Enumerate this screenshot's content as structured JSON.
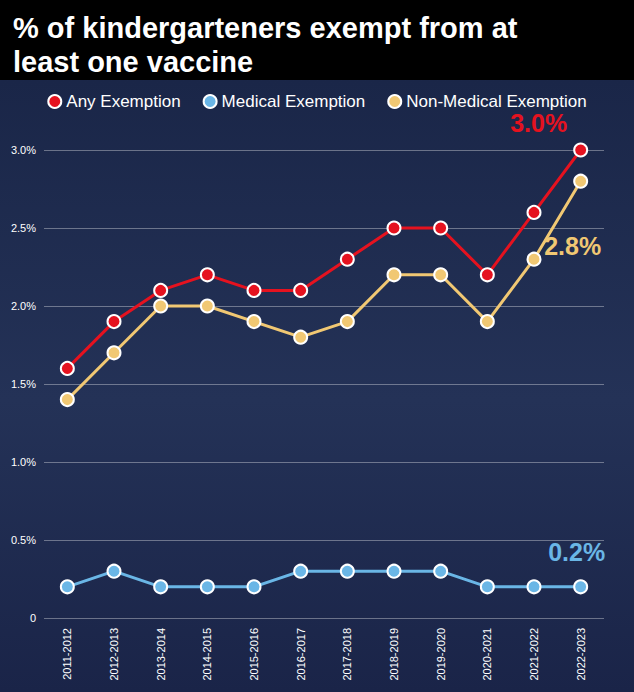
{
  "chart_data": {
    "type": "line",
    "title": "% of kindergarteners exempt from at least one vaccine",
    "categories": [
      "2011-2012",
      "2012-2013",
      "2013-2014",
      "2014-2015",
      "2015-2016",
      "2016-2017",
      "2017-2018",
      "2018-2019",
      "2019-2020",
      "2020-2021",
      "2021-2022",
      "2022-2023"
    ],
    "series": [
      {
        "name": "Any Exemption",
        "color": "#e5121f",
        "values": [
          1.6,
          1.9,
          2.1,
          2.2,
          2.1,
          2.1,
          2.3,
          2.5,
          2.5,
          2.2,
          2.6,
          3.0
        ]
      },
      {
        "name": "Medical Exemption",
        "color": "#6ab6e6",
        "values": [
          0.2,
          0.3,
          0.2,
          0.2,
          0.2,
          0.3,
          0.3,
          0.3,
          0.3,
          0.2,
          0.2,
          0.2
        ]
      },
      {
        "name": "Non-Medical Exemption",
        "color": "#f1c873",
        "values": [
          1.4,
          1.7,
          2.0,
          2.0,
          1.9,
          1.8,
          1.9,
          2.2,
          2.2,
          1.9,
          2.3,
          2.8
        ]
      }
    ],
    "annotations": [
      {
        "text": "3.0%",
        "series": "Any Exemption",
        "x": "2022-2023",
        "y": 3.0
      },
      {
        "text": "2.8%",
        "series": "Non-Medical Exemption",
        "x": "2022-2023",
        "y": 2.8
      },
      {
        "text": "0.2%",
        "series": "Medical Exemption",
        "x": "2022-2023",
        "y": 0.2
      }
    ],
    "ylim": [
      0,
      3.0
    ],
    "yticks": [
      0,
      {
        "value": 0.5,
        "label": "0.5%"
      },
      {
        "value": 1.0,
        "label": "1.0%"
      },
      {
        "value": 1.5,
        "label": "1.5%"
      },
      {
        "value": 2.0,
        "label": "2.0%"
      },
      {
        "value": 2.5,
        "label": "2.5%"
      },
      {
        "value": 3.0,
        "label": "3.0%"
      }
    ],
    "grid": true,
    "legend": "top",
    "marker": "circle"
  }
}
